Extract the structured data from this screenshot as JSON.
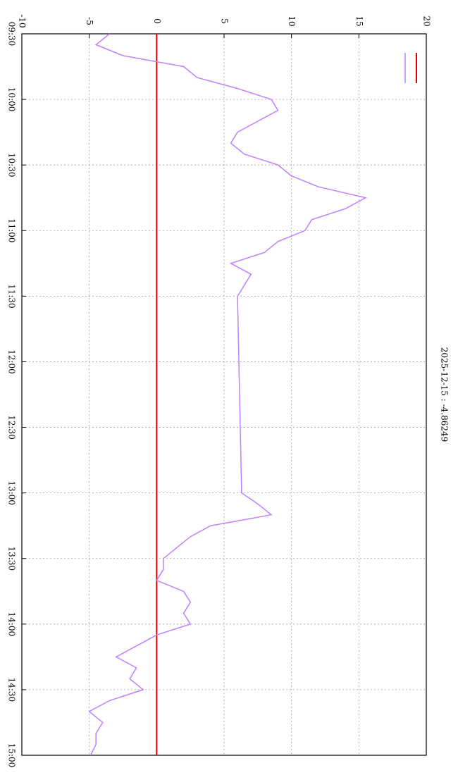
{
  "chart_data": {
    "type": "line",
    "title": "2025-12-15 : -4.86249",
    "x": [
      "09:30",
      "09:35",
      "09:40",
      "09:45",
      "09:50",
      "09:55",
      "10:00",
      "10:05",
      "10:10",
      "10:15",
      "10:20",
      "10:25",
      "10:30",
      "10:35",
      "10:40",
      "10:45",
      "10:50",
      "10:55",
      "11:00",
      "11:05",
      "11:10",
      "11:15",
      "11:20",
      "11:25",
      "11:30",
      "13:00",
      "13:05",
      "13:10",
      "13:15",
      "13:20",
      "13:25",
      "13:30",
      "13:35",
      "13:40",
      "13:45",
      "13:50",
      "13:55",
      "14:00",
      "14:05",
      "14:10",
      "14:15",
      "14:20",
      "14:25",
      "14:30",
      "14:35",
      "14:40",
      "14:45",
      "14:50",
      "14:55",
      "15:00"
    ],
    "series": [
      {
        "color": "#bf80ff",
        "values": [
          -3.5,
          -4.5,
          -2.5,
          2,
          3,
          6,
          8.5,
          9,
          7.5,
          6,
          5.5,
          6.5,
          9,
          10,
          12,
          15.5,
          14,
          11.5,
          11,
          9,
          8,
          5.5,
          7,
          6.5,
          6,
          6.3,
          7.5,
          8.5,
          4,
          2.5,
          1.5,
          0.5,
          0.5,
          0,
          2,
          2.5,
          2,
          2.5,
          0,
          -1.5,
          -3,
          -1.5,
          -2,
          -1,
          -3.5,
          -5,
          -4,
          -4.5,
          -4.5,
          -4.9
        ]
      }
    ],
    "reference_line": {
      "value": 0,
      "color": "#e00000"
    },
    "xlim": [
      "09:30",
      "15:00"
    ],
    "xticks": [
      "09:30",
      "10:00",
      "10:30",
      "11:00",
      "11:30",
      "12:00",
      "12:30",
      "13:00",
      "13:30",
      "14:00",
      "14:30",
      "15:00"
    ],
    "ylim": [
      -10,
      20
    ],
    "yticks": [
      -10,
      -5,
      0,
      5,
      10,
      15,
      20
    ],
    "grid": true
  }
}
